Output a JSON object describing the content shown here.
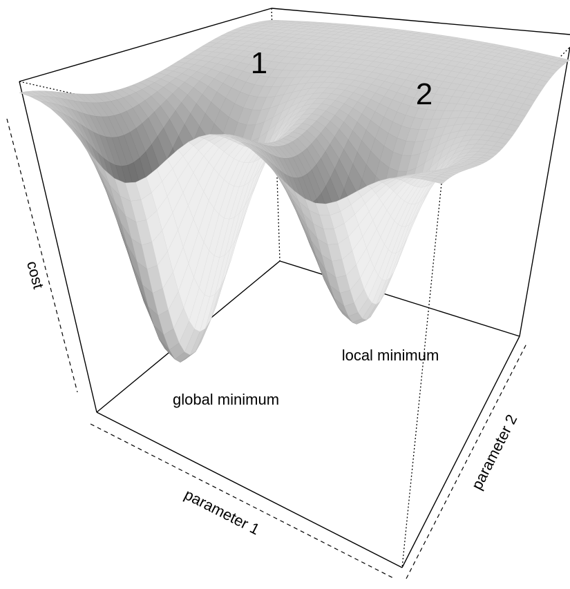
{
  "chart_data": {
    "type": "surface",
    "title": "",
    "xlabel": "parameter 1",
    "ylabel": "parameter 2",
    "zlabel": "cost",
    "annotations": {
      "global_min": "global minimum",
      "local_min": "local minimum",
      "marker_1": "1",
      "marker_2": "2"
    },
    "surface": {
      "minima": [
        {
          "name": "global minimum",
          "x": 0.25,
          "y": 0.25,
          "depth": 1.0
        },
        {
          "name": "local minimum",
          "x": 0.7,
          "y": 0.25,
          "depth": 0.72
        }
      ],
      "plateau_level": 0.15
    },
    "ticks_shown": false,
    "grid": false
  }
}
